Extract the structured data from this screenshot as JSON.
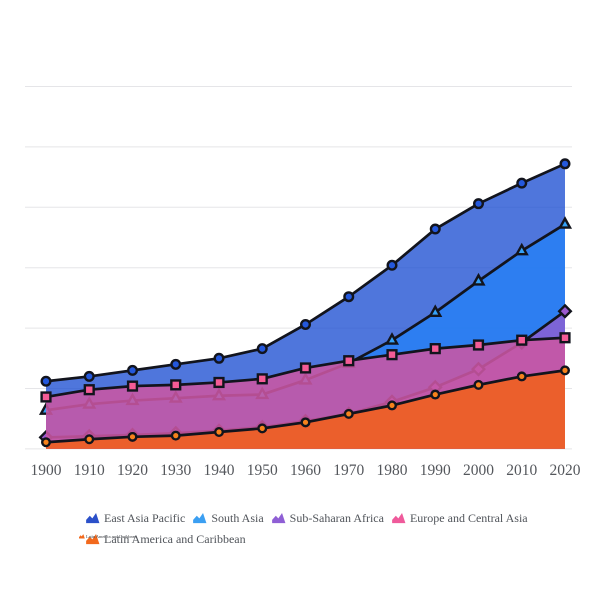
{
  "chart_data": {
    "type": "area",
    "title": "",
    "xlabel": "",
    "ylabel": "",
    "x": [
      1900,
      1910,
      1920,
      1930,
      1940,
      1950,
      1960,
      1970,
      1980,
      1990,
      2000,
      2010,
      2020
    ],
    "y_axis": {
      "min": 0,
      "max": 3.0,
      "gridline_step": 0.5,
      "labels_visible": false,
      "unit": "billions"
    },
    "grid_on": true,
    "legend_position": "bottom",
    "series": [
      {
        "name": "East Asia Pacific",
        "marker": "circle",
        "area_color": "#1e50d2",
        "area_alpha": 0.78,
        "marker_color": "#2458dc",
        "legend_color": "#2b50c9",
        "values": [
          0.56,
          0.6,
          0.65,
          0.7,
          0.75,
          0.83,
          1.03,
          1.26,
          1.52,
          1.82,
          2.03,
          2.2,
          2.36
        ]
      },
      {
        "name": "South Asia",
        "marker": "triangle",
        "area_color": "#2680f5",
        "area_alpha": 0.82,
        "marker_color": "#35a2f8",
        "legend_color": "#3b9ff2",
        "values": [
          0.32,
          0.37,
          0.4,
          0.42,
          0.44,
          0.45,
          0.57,
          0.71,
          0.9,
          1.13,
          1.39,
          1.64,
          1.86
        ]
      },
      {
        "name": "Sub-Saharan Africa",
        "marker": "diamond",
        "area_color": "#935ccf",
        "area_alpha": 0.78,
        "marker_color": "#9b59d0",
        "legend_color": "#8f5fd5",
        "values": [
          0.095,
          0.105,
          0.115,
          0.13,
          0.15,
          0.18,
          0.23,
          0.29,
          0.39,
          0.51,
          0.66,
          0.88,
          1.14
        ]
      },
      {
        "name": "Europe and Central Asia",
        "marker": "square",
        "area_color": "#cb56a3",
        "area_alpha": 0.88,
        "marker_color": "#f45c96",
        "legend_color": "#ef5a9b",
        "values": [
          0.43,
          0.49,
          0.52,
          0.53,
          0.55,
          0.58,
          0.67,
          0.73,
          0.78,
          0.83,
          0.86,
          0.9,
          0.92
        ]
      },
      {
        "name": "Latin America and Caribbean",
        "marker": "circle-small",
        "area_color": "#ef601e",
        "area_alpha": 0.9,
        "marker_color": "#f6821c",
        "legend_color": "#f2691d",
        "values": [
          0.055,
          0.08,
          0.1,
          0.11,
          0.14,
          0.17,
          0.22,
          0.29,
          0.36,
          0.45,
          0.53,
          0.6,
          0.65
        ]
      }
    ],
    "line_color": "#12141d",
    "grid_color": "#e5e5e8",
    "tick_label_color": "#54575c",
    "legend_text_color": "#50545a"
  },
  "glitch": {
    "label": "Latin America and Caribbean",
    "icon_color": "#f2691d"
  }
}
